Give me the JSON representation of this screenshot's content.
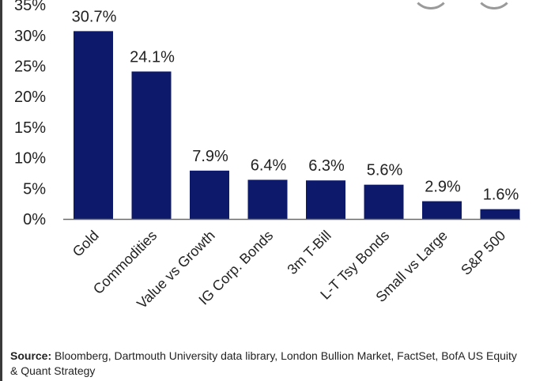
{
  "chart_data": {
    "type": "bar",
    "categories": [
      "Gold",
      "Commodities",
      "Value vs Growth",
      "IG Corp. Bonds",
      "3m T-Bill",
      "L-T Tsy Bonds",
      "Small vs Large",
      "S&P 500"
    ],
    "values": [
      30.7,
      24.1,
      7.9,
      6.4,
      6.3,
      5.6,
      2.9,
      1.6
    ],
    "value_labels": [
      "30.7%",
      "24.1%",
      "7.9%",
      "6.4%",
      "6.3%",
      "5.6%",
      "2.9%",
      "1.6%"
    ],
    "yticks": [
      0,
      5,
      10,
      15,
      20,
      25,
      30,
      35
    ],
    "ytick_labels": [
      "0%",
      "5%",
      "10%",
      "15%",
      "20%",
      "25%",
      "30%",
      "35%"
    ],
    "ylim": [
      0,
      35
    ],
    "grid": false,
    "legend": "none",
    "bar_color": "#0d1a6b",
    "title": "",
    "xlabel": "",
    "ylabel": ""
  },
  "source": {
    "label": "Source:",
    "text": "Bloomberg, Dartmouth University data library, London Bullion Market, FactSet, BofA US Equity & Quant Strategy"
  }
}
